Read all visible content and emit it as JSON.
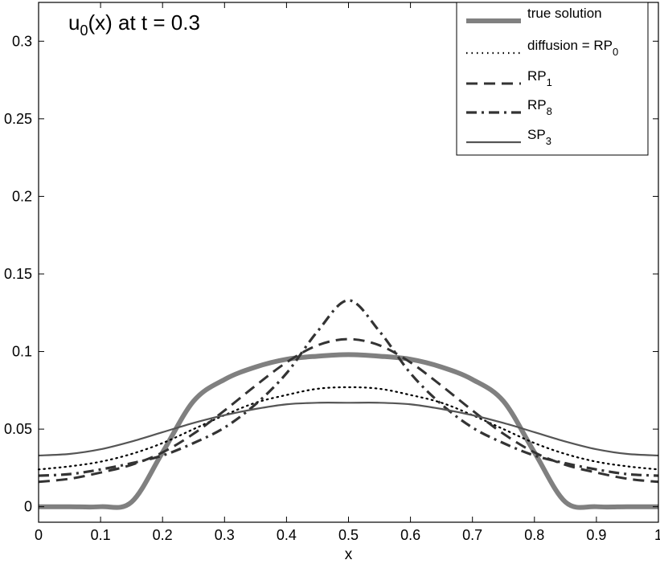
{
  "chart_data": {
    "type": "line",
    "title": "u",
    "title_sub": "0",
    "title_rest": "(x) at t = 0.3",
    "xlabel": "x",
    "ylabel": "",
    "xlim": [
      0,
      1
    ],
    "ylim": [
      -0.01,
      0.325
    ],
    "xticks": [
      0,
      0.1,
      0.2,
      0.3,
      0.4,
      0.5,
      0.6,
      0.7,
      0.8,
      0.9,
      1
    ],
    "xtick_labels": [
      "0",
      "0.1",
      "0.2",
      "0.3",
      "0.4",
      "0.5",
      "0.6",
      "0.7",
      "0.8",
      "0.9",
      "1"
    ],
    "yticks": [
      0,
      0.05,
      0.1,
      0.15,
      0.2,
      0.25,
      0.3
    ],
    "ytick_labels": [
      "0",
      "0.05",
      "0.1",
      "0.15",
      "0.2",
      "0.25",
      "0.3"
    ],
    "grid": false,
    "legend_position": "top-right",
    "x": [
      0,
      0.05,
      0.1,
      0.15,
      0.2,
      0.25,
      0.3,
      0.35,
      0.4,
      0.45,
      0.5,
      0.55,
      0.6,
      0.65,
      0.7,
      0.75,
      0.8,
      0.85,
      0.9,
      0.95,
      1
    ],
    "series": [
      {
        "key": "true",
        "label_main": "true solution",
        "label_sub": "",
        "style": "solid",
        "color": "#808080",
        "width": 6,
        "values": [
          0,
          0,
          0,
          0.003,
          0.035,
          0.068,
          0.082,
          0.09,
          0.095,
          0.097,
          0.098,
          0.097,
          0.095,
          0.09,
          0.082,
          0.068,
          0.035,
          0.003,
          0,
          0,
          0
        ]
      },
      {
        "key": "rp0",
        "label_main": "diffusion = RP",
        "label_sub": "0",
        "style": "dotted",
        "color": "#000000",
        "width": 2.2,
        "values": [
          0.024,
          0.026,
          0.029,
          0.034,
          0.041,
          0.05,
          0.059,
          0.067,
          0.072,
          0.076,
          0.077,
          0.076,
          0.072,
          0.067,
          0.059,
          0.05,
          0.041,
          0.034,
          0.029,
          0.026,
          0.024
        ]
      },
      {
        "key": "rp1",
        "label_main": "RP",
        "label_sub": "1",
        "style": "dashed",
        "color": "#333333",
        "width": 3,
        "values": [
          0.016,
          0.018,
          0.022,
          0.027,
          0.035,
          0.047,
          0.062,
          0.078,
          0.093,
          0.104,
          0.108,
          0.104,
          0.093,
          0.078,
          0.062,
          0.047,
          0.035,
          0.027,
          0.022,
          0.018,
          0.016
        ]
      },
      {
        "key": "rp8",
        "label_main": "RP",
        "label_sub": "8",
        "style": "dashdot",
        "color": "#333333",
        "width": 3.2,
        "values": [
          0.02,
          0.021,
          0.024,
          0.028,
          0.033,
          0.041,
          0.051,
          0.066,
          0.086,
          0.113,
          0.133,
          0.113,
          0.086,
          0.066,
          0.051,
          0.041,
          0.033,
          0.028,
          0.024,
          0.021,
          0.02
        ]
      },
      {
        "key": "sp3",
        "label_main": "SP",
        "label_sub": "3",
        "style": "solid",
        "color": "#555555",
        "width": 2.2,
        "values": [
          0.033,
          0.034,
          0.037,
          0.042,
          0.048,
          0.054,
          0.059,
          0.063,
          0.066,
          0.067,
          0.067,
          0.067,
          0.066,
          0.063,
          0.059,
          0.054,
          0.048,
          0.042,
          0.037,
          0.034,
          0.033
        ]
      }
    ]
  }
}
